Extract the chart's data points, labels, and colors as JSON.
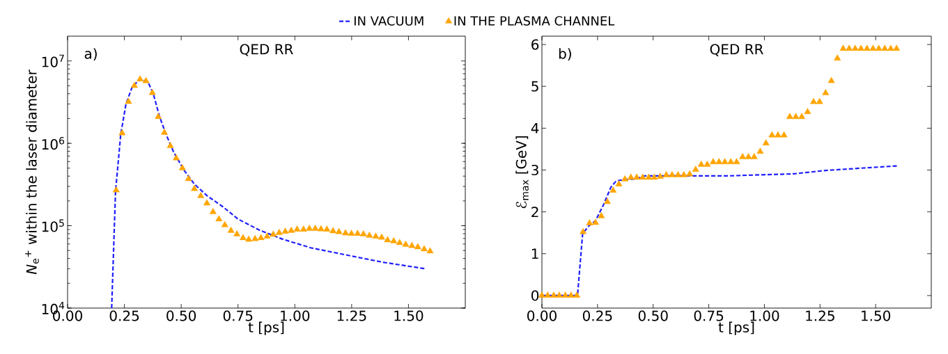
{
  "chart_data": [
    {
      "type": "line",
      "title": "QED RR",
      "xlabel": "t [ps]",
      "ylabel": "*N*$_{e}$$^{+}$ within the laser diameter",
      "annotations": [
        "a)"
      ],
      "log": "y",
      "legend": "top",
      "xlim": [
        0,
        1.75
      ],
      "ylim": [
        10000,
        20000000
      ],
      "xticks": [
        {
          "value": 0,
          "label": "0.00"
        },
        {
          "value": 0.25,
          "label": "0.25"
        },
        {
          "value": 0.5,
          "label": "0.50"
        },
        {
          "value": 0.75,
          "label": "0.75"
        },
        {
          "value": 1,
          "label": "1.00"
        },
        {
          "value": 1.25,
          "label": "1.25"
        },
        {
          "value": 1.5,
          "label": "1.50"
        }
      ],
      "yticks": [
        {
          "value": 10000,
          "label": "10$^{4}$"
        },
        {
          "value": 100000,
          "label": "10$^{5}$"
        },
        {
          "value": 1000000,
          "label": "10$^{6}$"
        },
        {
          "value": 10000000,
          "label": "10$^{7}$"
        }
      ],
      "series": [
        {
          "name": "IN VACUUM",
          "type": "line",
          "line_style": "dashed",
          "color": "#1f1fff",
          "x": [
            0.194,
            0.211,
            0.234,
            0.257,
            0.285,
            0.319,
            0.353,
            0.376,
            0.405,
            0.433,
            0.467,
            0.513,
            0.558,
            0.615,
            0.683,
            0.751,
            0.842,
            0.944,
            1.069,
            1.194,
            1.388,
            1.575
          ],
          "values": [
            10000,
            260000,
            1290000,
            3000000,
            4900000,
            6000000,
            5600000,
            4100000,
            2100000,
            1290000,
            780000,
            470000,
            320000,
            230000,
            170000,
            120000,
            89000,
            69000,
            54000,
            46000,
            36000,
            30000
          ]
        },
        {
          "name": "IN THE PLASMA CHANNEL",
          "type": "scatter",
          "marker": "triangle",
          "color": "#ffa500",
          "x": [
            0.214,
            0.24,
            0.268,
            0.294,
            0.319,
            0.345,
            0.373,
            0.399,
            0.426,
            0.452,
            0.478,
            0.505,
            0.532,
            0.558,
            0.586,
            0.613,
            0.64,
            0.666,
            0.692,
            0.719,
            0.745,
            0.772,
            0.797,
            0.825,
            0.851,
            0.878,
            0.905,
            0.931,
            0.958,
            0.984,
            1.01,
            1.038,
            1.064,
            1.09,
            1.115,
            1.141,
            1.168,
            1.194,
            1.223,
            1.249,
            1.276,
            1.302,
            1.328,
            1.356,
            1.382,
            1.408,
            1.435,
            1.461,
            1.488,
            1.515,
            1.541,
            1.569,
            1.595
          ],
          "values": [
            270000,
            1330000,
            3200000,
            5000000,
            6000000,
            5700000,
            4100000,
            2100000,
            1350000,
            930000,
            660000,
            500000,
            370000,
            280000,
            230000,
            187000,
            147000,
            120000,
            102000,
            87000,
            79000,
            71000,
            68000,
            69000,
            71000,
            74000,
            78000,
            82000,
            85000,
            87000,
            90000,
            90000,
            92000,
            92000,
            91000,
            90000,
            86000,
            84000,
            81000,
            80000,
            80000,
            79000,
            76000,
            74000,
            72000,
            67000,
            65000,
            62000,
            59000,
            57000,
            55000,
            52000,
            49000
          ]
        }
      ]
    },
    {
      "type": "line",
      "title": "QED RR",
      "xlabel": "t [ps]",
      "ylabel": "ℰ$_{max}$ [GeV]",
      "annotations": [
        "b)"
      ],
      "xlim": [
        0,
        1.75
      ],
      "ylim": [
        -0.3,
        6.2
      ],
      "xticks": [
        {
          "value": 0,
          "label": "0.00"
        },
        {
          "value": 0.25,
          "label": "0.25"
        },
        {
          "value": 0.5,
          "label": "0.50"
        },
        {
          "value": 0.75,
          "label": "0.75"
        },
        {
          "value": 1,
          "label": "1.00"
        },
        {
          "value": 1.25,
          "label": "1.25"
        },
        {
          "value": 1.5,
          "label": "1.50"
        }
      ],
      "yticks": [
        0,
        1,
        2,
        3,
        4,
        5,
        6
      ],
      "series": [
        {
          "type": "line",
          "line_style": "dashed",
          "color": "#1f1fff",
          "x": [
            0,
            0.16,
            0.183,
            0.212,
            0.241,
            0.276,
            0.31,
            0.334,
            0.368,
            0.426,
            0.461,
            0.67,
            0.832,
            1.134,
            1.273,
            1.598
          ],
          "values": [
            0,
            0,
            1.48,
            1.67,
            1.79,
            2.16,
            2.59,
            2.74,
            2.77,
            2.79,
            2.86,
            2.86,
            2.86,
            2.91,
            2.99,
            3.1
          ]
        },
        {
          "type": "scatter",
          "marker": "triangle",
          "color": "#ffa500",
          "x": [
            0,
            0.026,
            0.053,
            0.078,
            0.105,
            0.131,
            0.157,
            0.185,
            0.214,
            0.241,
            0.267,
            0.294,
            0.32,
            0.346,
            0.373,
            0.4,
            0.426,
            0.453,
            0.48,
            0.505,
            0.532,
            0.559,
            0.585,
            0.612,
            0.638,
            0.664,
            0.691,
            0.716,
            0.743,
            0.77,
            0.796,
            0.822,
            0.849,
            0.875,
            0.902,
            0.928,
            0.954,
            0.981,
            1.007,
            1.034,
            1.061,
            1.088,
            1.114,
            1.141,
            1.168,
            1.194,
            1.221,
            1.248,
            1.275,
            1.301,
            1.328,
            1.354,
            1.381,
            1.408,
            1.434,
            1.461,
            1.488,
            1.514,
            1.541,
            1.568,
            1.594
          ],
          "values": [
            0,
            0,
            0,
            0,
            0,
            0,
            0,
            1.52,
            1.73,
            1.74,
            1.9,
            2.24,
            2.51,
            2.66,
            2.78,
            2.82,
            2.82,
            2.82,
            2.82,
            2.82,
            2.84,
            2.88,
            2.88,
            2.88,
            2.88,
            2.9,
            3.01,
            3.13,
            3.13,
            3.19,
            3.19,
            3.19,
            3.19,
            3.19,
            3.31,
            3.31,
            3.31,
            3.44,
            3.64,
            3.83,
            3.83,
            3.83,
            4.27,
            4.27,
            4.27,
            4.39,
            4.63,
            4.63,
            4.84,
            5.13,
            5.67,
            5.9,
            5.9,
            5.9,
            5.9,
            5.9,
            5.9,
            5.9,
            5.9,
            5.9,
            5.9
          ]
        }
      ]
    }
  ]
}
